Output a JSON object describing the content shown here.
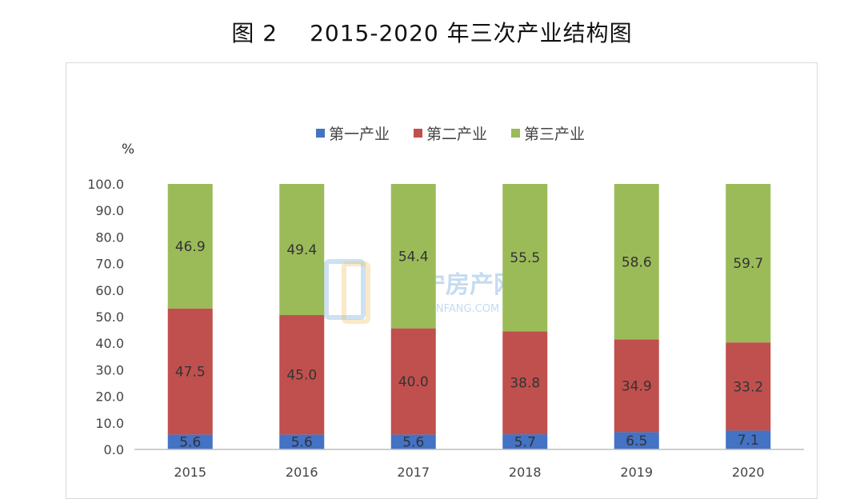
{
  "title": {
    "figure_no": "图 2",
    "text": "2015-2020 年三次产业结构图"
  },
  "watermark": {
    "text": "普宁房产网",
    "sub": "PNFANG.COM"
  },
  "chart_data": {
    "type": "bar",
    "stacked": true,
    "ylabel": "%",
    "ylim": [
      0,
      100
    ],
    "yticks": [
      "0.0",
      "10.0",
      "20.0",
      "30.0",
      "40.0",
      "50.0",
      "60.0",
      "70.0",
      "80.0",
      "90.0",
      "100.0"
    ],
    "categories": [
      "2015",
      "2016",
      "2017",
      "2018",
      "2019",
      "2020"
    ],
    "legend_position": "top",
    "series": [
      {
        "name": "第一产业",
        "color": "#4472c4",
        "values": [
          5.6,
          5.6,
          5.6,
          5.7,
          6.5,
          7.1
        ],
        "labels": [
          "5.6",
          "5.6",
          "5.6",
          "5.7",
          "6.5",
          "7.1"
        ]
      },
      {
        "name": "第二产业",
        "color": "#c0504d",
        "values": [
          47.5,
          45.0,
          40.0,
          38.8,
          34.9,
          33.2
        ],
        "labels": [
          "47.5",
          "45.0",
          "40.0",
          "38.8",
          "34.9",
          "33.2"
        ]
      },
      {
        "name": "第三产业",
        "color": "#9bbb59",
        "values": [
          46.9,
          49.4,
          54.4,
          55.5,
          58.6,
          59.7
        ],
        "labels": [
          "46.9",
          "49.4",
          "54.4",
          "55.5",
          "58.6",
          "59.7"
        ]
      }
    ]
  }
}
